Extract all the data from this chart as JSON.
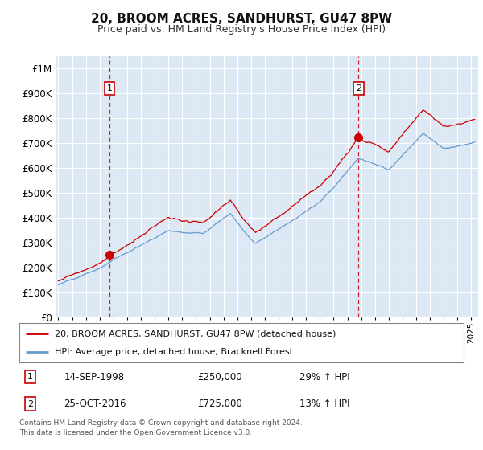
{
  "title": "20, BROOM ACRES, SANDHURST, GU47 8PW",
  "subtitle": "Price paid vs. HM Land Registry's House Price Index (HPI)",
  "plot_bg_color": "#dce9f5",
  "grid_color": "#ffffff",
  "red_line_color": "#cc0000",
  "blue_line_color": "#6699cc",
  "marker1_date_x": 1998.71,
  "marker1_y": 250000,
  "marker2_date_x": 2016.81,
  "marker2_y": 725000,
  "yticks": [
    0,
    100000,
    200000,
    300000,
    400000,
    500000,
    600000,
    700000,
    800000,
    900000,
    1000000
  ],
  "ylim": [
    0,
    1050000
  ],
  "xlim_start": 1994.8,
  "xlim_end": 2025.5,
  "legend_label_red": "20, BROOM ACRES, SANDHURST, GU47 8PW (detached house)",
  "legend_label_blue": "HPI: Average price, detached house, Bracknell Forest",
  "note1_label": "1",
  "note1_date": "14-SEP-1998",
  "note1_price": "£250,000",
  "note1_hpi": "29% ↑ HPI",
  "note2_label": "2",
  "note2_date": "25-OCT-2016",
  "note2_price": "£725,000",
  "note2_hpi": "13% ↑ HPI",
  "footer": "Contains HM Land Registry data © Crown copyright and database right 2024.\nThis data is licensed under the Open Government Licence v3.0."
}
